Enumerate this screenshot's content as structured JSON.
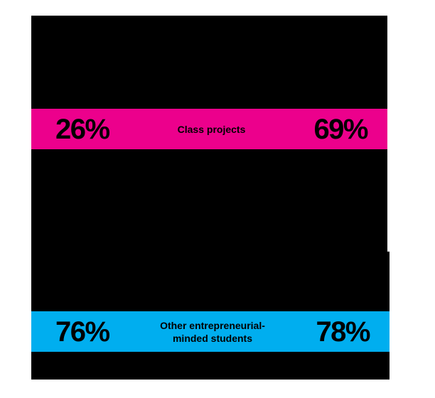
{
  "chart_data": {
    "type": "table",
    "title": "",
    "categories": [
      "Class projects",
      "Other entrepreneurial-minded students"
    ],
    "series": [
      {
        "name": "left value",
        "values": [
          26,
          76
        ]
      },
      {
        "name": "right value",
        "values": [
          69,
          78
        ]
      }
    ],
    "units": "%",
    "band_colors": [
      "#EC008C",
      "#00AEEF"
    ],
    "layout_hint": "two horizontal stat bands over solid black blocks; left and right percentages with centered category label"
  },
  "stats": [
    {
      "left_value": "26%",
      "label": "Class projects",
      "label_lines": [
        "Class projects"
      ],
      "right_value": "69%",
      "band_color": "#EC008C"
    },
    {
      "left_value": "76%",
      "label": "Other entrepreneurial-minded students",
      "label_lines": [
        "Other entrepreneurial-",
        "minded students"
      ],
      "right_value": "78%",
      "band_color": "#00AEEF"
    }
  ],
  "colors": {
    "background": "#FFFFFF",
    "block_fill": "#000000",
    "band_text": "#000000",
    "magenta_band": "#EC008C",
    "blue_band": "#00AEEF"
  }
}
